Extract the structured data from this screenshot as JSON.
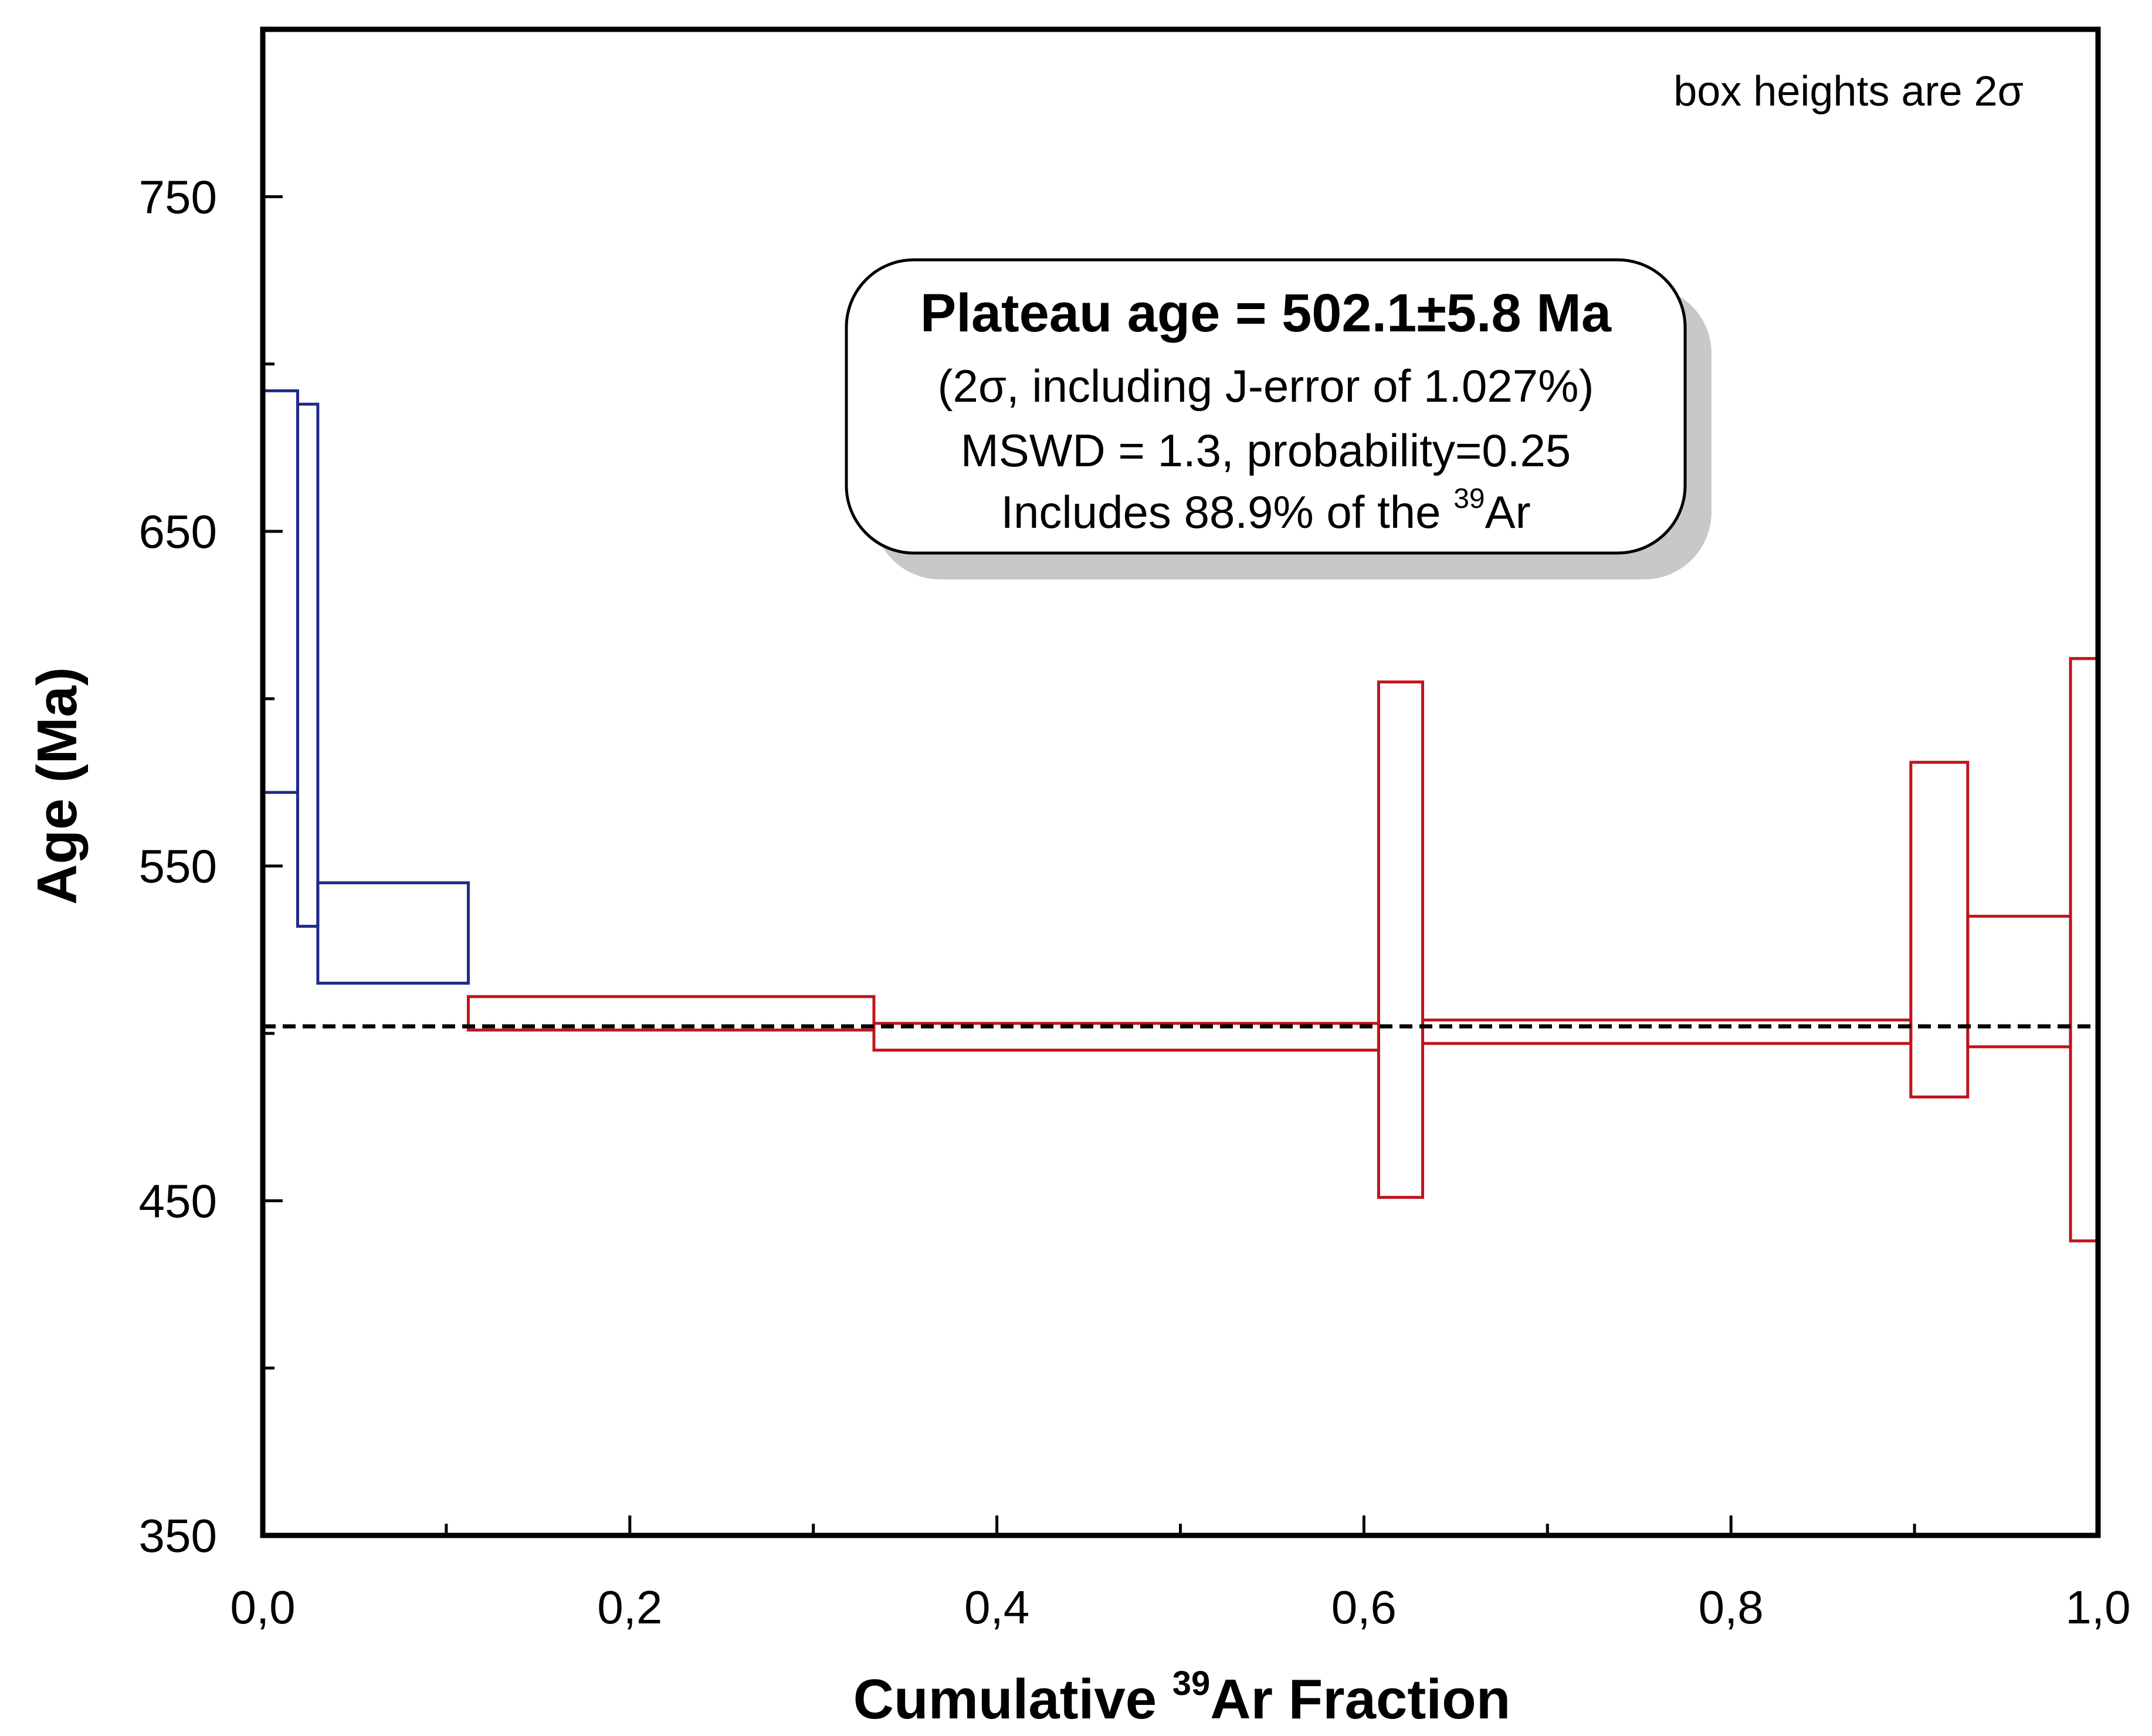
{
  "chart_data": {
    "type": "age-spectrum",
    "x_axis": {
      "label_prefix": "Cumulative ",
      "label_sup": "39",
      "label_suffix": "Ar Fraction",
      "range": [
        0,
        1
      ],
      "ticks": [
        0,
        0.2,
        0.4,
        0.6,
        0.8,
        1.0
      ],
      "tick_labels": [
        "0,0",
        "0,2",
        "0,4",
        "0,6",
        "0,8",
        "1,0"
      ],
      "minor_ticks": [
        0.1,
        0.3,
        0.5,
        0.7,
        0.9
      ]
    },
    "y_axis": {
      "label": "Age (Ma)",
      "range": [
        350,
        800
      ],
      "ticks": [
        350,
        450,
        550,
        650,
        750
      ],
      "tick_labels": [
        "350",
        "450",
        "550",
        "650",
        "750"
      ],
      "minor_ticks": [
        400,
        500,
        600,
        700
      ]
    },
    "note": "box heights are 2σ",
    "plateau": {
      "age": 502.1,
      "title": "Plateau age = 502.1±5.8 Ma",
      "line2": "(2σ, including J-error of 1.027%)",
      "line3": "MSWD = 1.3, probability=0.25",
      "line4_prefix": "Includes  88.9% of the ",
      "line4_sup": "39",
      "line4_suffix": "Ar"
    },
    "steps": [
      {
        "x0": 0.0,
        "x1": 0.019,
        "lo": 572,
        "hi": 692,
        "group": "excluded"
      },
      {
        "x0": 0.019,
        "x1": 0.03,
        "lo": 532,
        "hi": 688,
        "group": "excluded"
      },
      {
        "x0": 0.03,
        "x1": 0.112,
        "lo": 515,
        "hi": 545,
        "group": "excluded"
      },
      {
        "x0": 0.112,
        "x1": 0.333,
        "lo": 501,
        "hi": 511,
        "group": "plateau"
      },
      {
        "x0": 0.333,
        "x1": 0.608,
        "lo": 495,
        "hi": 503,
        "group": "plateau"
      },
      {
        "x0": 0.608,
        "x1": 0.632,
        "lo": 451,
        "hi": 605,
        "group": "plateau"
      },
      {
        "x0": 0.632,
        "x1": 0.898,
        "lo": 497,
        "hi": 504,
        "group": "plateau"
      },
      {
        "x0": 0.898,
        "x1": 0.929,
        "lo": 481,
        "hi": 581,
        "group": "plateau"
      },
      {
        "x0": 0.929,
        "x1": 0.985,
        "lo": 496,
        "hi": 535,
        "group": "plateau"
      },
      {
        "x0": 0.985,
        "x1": 1.0,
        "lo": 438,
        "hi": 612,
        "group": "plateau"
      }
    ],
    "colors": {
      "excluded": "#1f2a8a",
      "plateau": "#c0141c",
      "axis": "#000000",
      "box_fill": "#ffffff",
      "shadow": "#c8c8c8"
    }
  }
}
